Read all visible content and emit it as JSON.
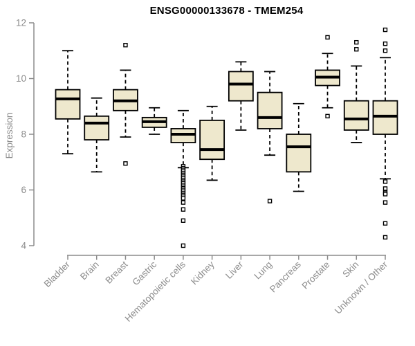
{
  "chart_data": {
    "type": "boxplot",
    "title": "ENSG00000133678 - TMEM254",
    "ylabel": "Expression",
    "xlabel": "",
    "ylim": [
      4,
      12
    ],
    "yticks": [
      4,
      6,
      8,
      10,
      12
    ],
    "grid": false,
    "legend": false,
    "categories": [
      "Bladder",
      "Brain",
      "Breast",
      "Gastric",
      "Hematopoietic cells",
      "Kidney",
      "Liver",
      "Lung",
      "Pancreas",
      "Prostate",
      "Skin",
      "Unknown / Other"
    ],
    "series": [
      {
        "name": "Bladder",
        "whisker_low": 7.3,
        "q1": 8.55,
        "median": 9.27,
        "q3": 9.6,
        "whisker_high": 11.0,
        "outliers": []
      },
      {
        "name": "Brain",
        "whisker_low": 6.65,
        "q1": 7.8,
        "median": 8.4,
        "q3": 8.65,
        "whisker_high": 9.3,
        "outliers": []
      },
      {
        "name": "Breast",
        "whisker_low": 7.9,
        "q1": 8.85,
        "median": 9.2,
        "q3": 9.6,
        "whisker_high": 10.3,
        "outliers": [
          11.2,
          6.95
        ]
      },
      {
        "name": "Gastric",
        "whisker_low": 8.0,
        "q1": 8.25,
        "median": 8.45,
        "q3": 8.6,
        "whisker_high": 8.95,
        "outliers": []
      },
      {
        "name": "Hematopoietic cells",
        "whisker_low": 6.8,
        "q1": 7.7,
        "median": 8.0,
        "q3": 8.2,
        "whisker_high": 8.85,
        "outliers": [
          6.85,
          6.78,
          6.72,
          6.66,
          6.6,
          6.54,
          6.48,
          6.42,
          6.36,
          6.3,
          6.24,
          6.18,
          6.12,
          6.06,
          6.0,
          5.94,
          5.88,
          5.82,
          5.76,
          5.7,
          5.55,
          5.3,
          4.9,
          4.0
        ]
      },
      {
        "name": "Kidney",
        "whisker_low": 6.35,
        "q1": 7.1,
        "median": 7.45,
        "q3": 8.5,
        "whisker_high": 9.0,
        "outliers": []
      },
      {
        "name": "Liver",
        "whisker_low": 8.15,
        "q1": 9.2,
        "median": 9.8,
        "q3": 10.25,
        "whisker_high": 10.6,
        "outliers": []
      },
      {
        "name": "Lung",
        "whisker_low": 7.25,
        "q1": 8.2,
        "median": 8.6,
        "q3": 9.5,
        "whisker_high": 10.25,
        "outliers": [
          5.6
        ]
      },
      {
        "name": "Pancreas",
        "whisker_low": 5.95,
        "q1": 6.65,
        "median": 7.55,
        "q3": 8.0,
        "whisker_high": 9.1,
        "outliers": []
      },
      {
        "name": "Prostate",
        "whisker_low": 8.95,
        "q1": 9.75,
        "median": 10.05,
        "q3": 10.3,
        "whisker_high": 10.9,
        "outliers": [
          11.48,
          8.65
        ]
      },
      {
        "name": "Skin",
        "whisker_low": 7.7,
        "q1": 8.15,
        "median": 8.55,
        "q3": 9.2,
        "whisker_high": 10.45,
        "outliers": [
          11.3,
          11.05
        ]
      },
      {
        "name": "Unknown / Other",
        "whisker_low": 6.4,
        "q1": 8.0,
        "median": 8.65,
        "q3": 9.2,
        "whisker_high": 10.75,
        "outliers": [
          11.75,
          11.25,
          11.0,
          6.3,
          6.05,
          5.9,
          5.85,
          5.55,
          4.8,
          4.3
        ]
      }
    ],
    "colors": {
      "box_fill": "#EEE8CD",
      "box_stroke": "#000000",
      "median": "#000000",
      "whisker": "#000000",
      "outlier_stroke": "#000000",
      "outlier_fill": "#ffffff",
      "axis": "#8C8C8C",
      "tick_label": "#8C8C8C",
      "title": "#000000",
      "background": "#ffffff"
    }
  }
}
